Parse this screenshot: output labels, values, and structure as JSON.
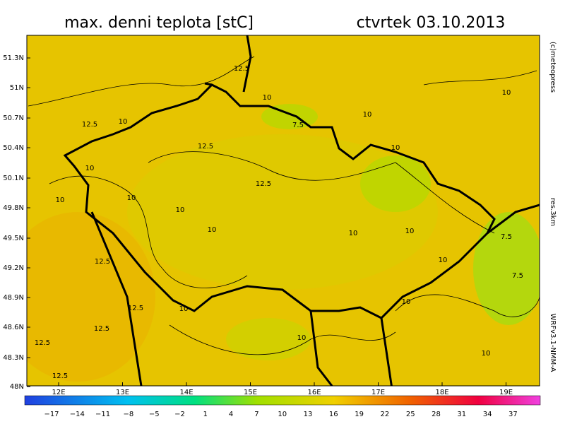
{
  "header": {
    "title": "max. denni teplota [stC]",
    "date": "ctvrtek 03.10.2013"
  },
  "map": {
    "latitude_labels": [
      "51.3N",
      "51N",
      "50.7N",
      "50.4N",
      "50.1N",
      "49.8N",
      "49.5N",
      "49.2N",
      "48.9N",
      "48.6N",
      "48.3N",
      "48N"
    ],
    "longitude_labels": [
      "12E",
      "13E",
      "14E",
      "15E",
      "16E",
      "17E",
      "18E",
      "19E"
    ],
    "contour_labels": [
      "12.5",
      "10",
      "10",
      "12.5",
      "10",
      "10",
      "7.5",
      "12.5",
      "10",
      "10",
      "12.5",
      "10",
      "10",
      "10",
      "10",
      "10",
      "10",
      "7.5",
      "12.5",
      "10",
      "7.5",
      "12.5",
      "10",
      "10",
      "12.5",
      "10",
      "12.5",
      "10",
      "12.5"
    ]
  },
  "colorbar": {
    "labels": [
      "−17",
      "−14",
      "−11",
      "−8",
      "−5",
      "−2",
      "1",
      "4",
      "7",
      "10",
      "13",
      "16",
      "19",
      "22",
      "25",
      "28",
      "31",
      "34",
      "37"
    ]
  },
  "credits": {
    "copyright": "(c)meteopress",
    "resolution": "res.3km",
    "model": "WRFv3.1-NMM-A"
  }
}
